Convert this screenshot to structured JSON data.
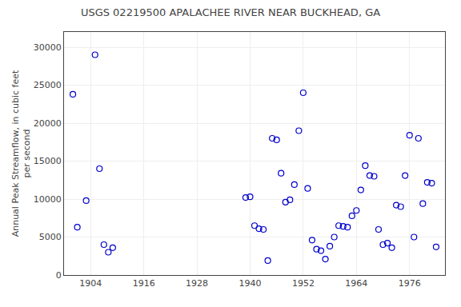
{
  "chart_data": {
    "type": "scatter",
    "title": "USGS 02219500 APALACHEE RIVER NEAR BUCKHEAD, GA",
    "ylabel": "Annual Peak Streamflow, in cubic feet\nper second",
    "x": [
      1900,
      1901,
      1903,
      1905,
      1906,
      1907,
      1908,
      1909,
      1939,
      1940,
      1941,
      1942,
      1943,
      1944,
      1945,
      1946,
      1947,
      1948,
      1949,
      1950,
      1951,
      1952,
      1953,
      1954,
      1955,
      1956,
      1957,
      1958,
      1959,
      1960,
      1961,
      1962,
      1963,
      1964,
      1965,
      1966,
      1967,
      1968,
      1969,
      1970,
      1971,
      1972,
      1973,
      1974,
      1975,
      1976,
      1977,
      1978,
      1979,
      1980,
      1981,
      1982
    ],
    "values": [
      23800,
      6300,
      9800,
      29000,
      14000,
      4000,
      3000,
      3600,
      10200,
      10300,
      6500,
      6100,
      6000,
      1900,
      18000,
      17800,
      13400,
      9600,
      9900,
      11900,
      19000,
      24000,
      11400,
      4600,
      3400,
      3200,
      2100,
      3800,
      5000,
      6500,
      6400,
      6300,
      7800,
      8500,
      11200,
      14400,
      13100,
      13000,
      6000,
      4000,
      4200,
      3600,
      9200,
      9000,
      13100,
      18400,
      5000,
      18000,
      9400,
      12200,
      12100,
      3700
    ],
    "xlim": [
      1898,
      1984
    ],
    "ylim": [
      0,
      32000
    ],
    "xticks": [
      1904,
      1916,
      1928,
      1940,
      1952,
      1964,
      1976
    ],
    "yticks": [
      0,
      5000,
      10000,
      15000,
      20000,
      25000,
      30000
    ],
    "color": "#0000CC",
    "marker": "circle-open",
    "grid": true
  }
}
